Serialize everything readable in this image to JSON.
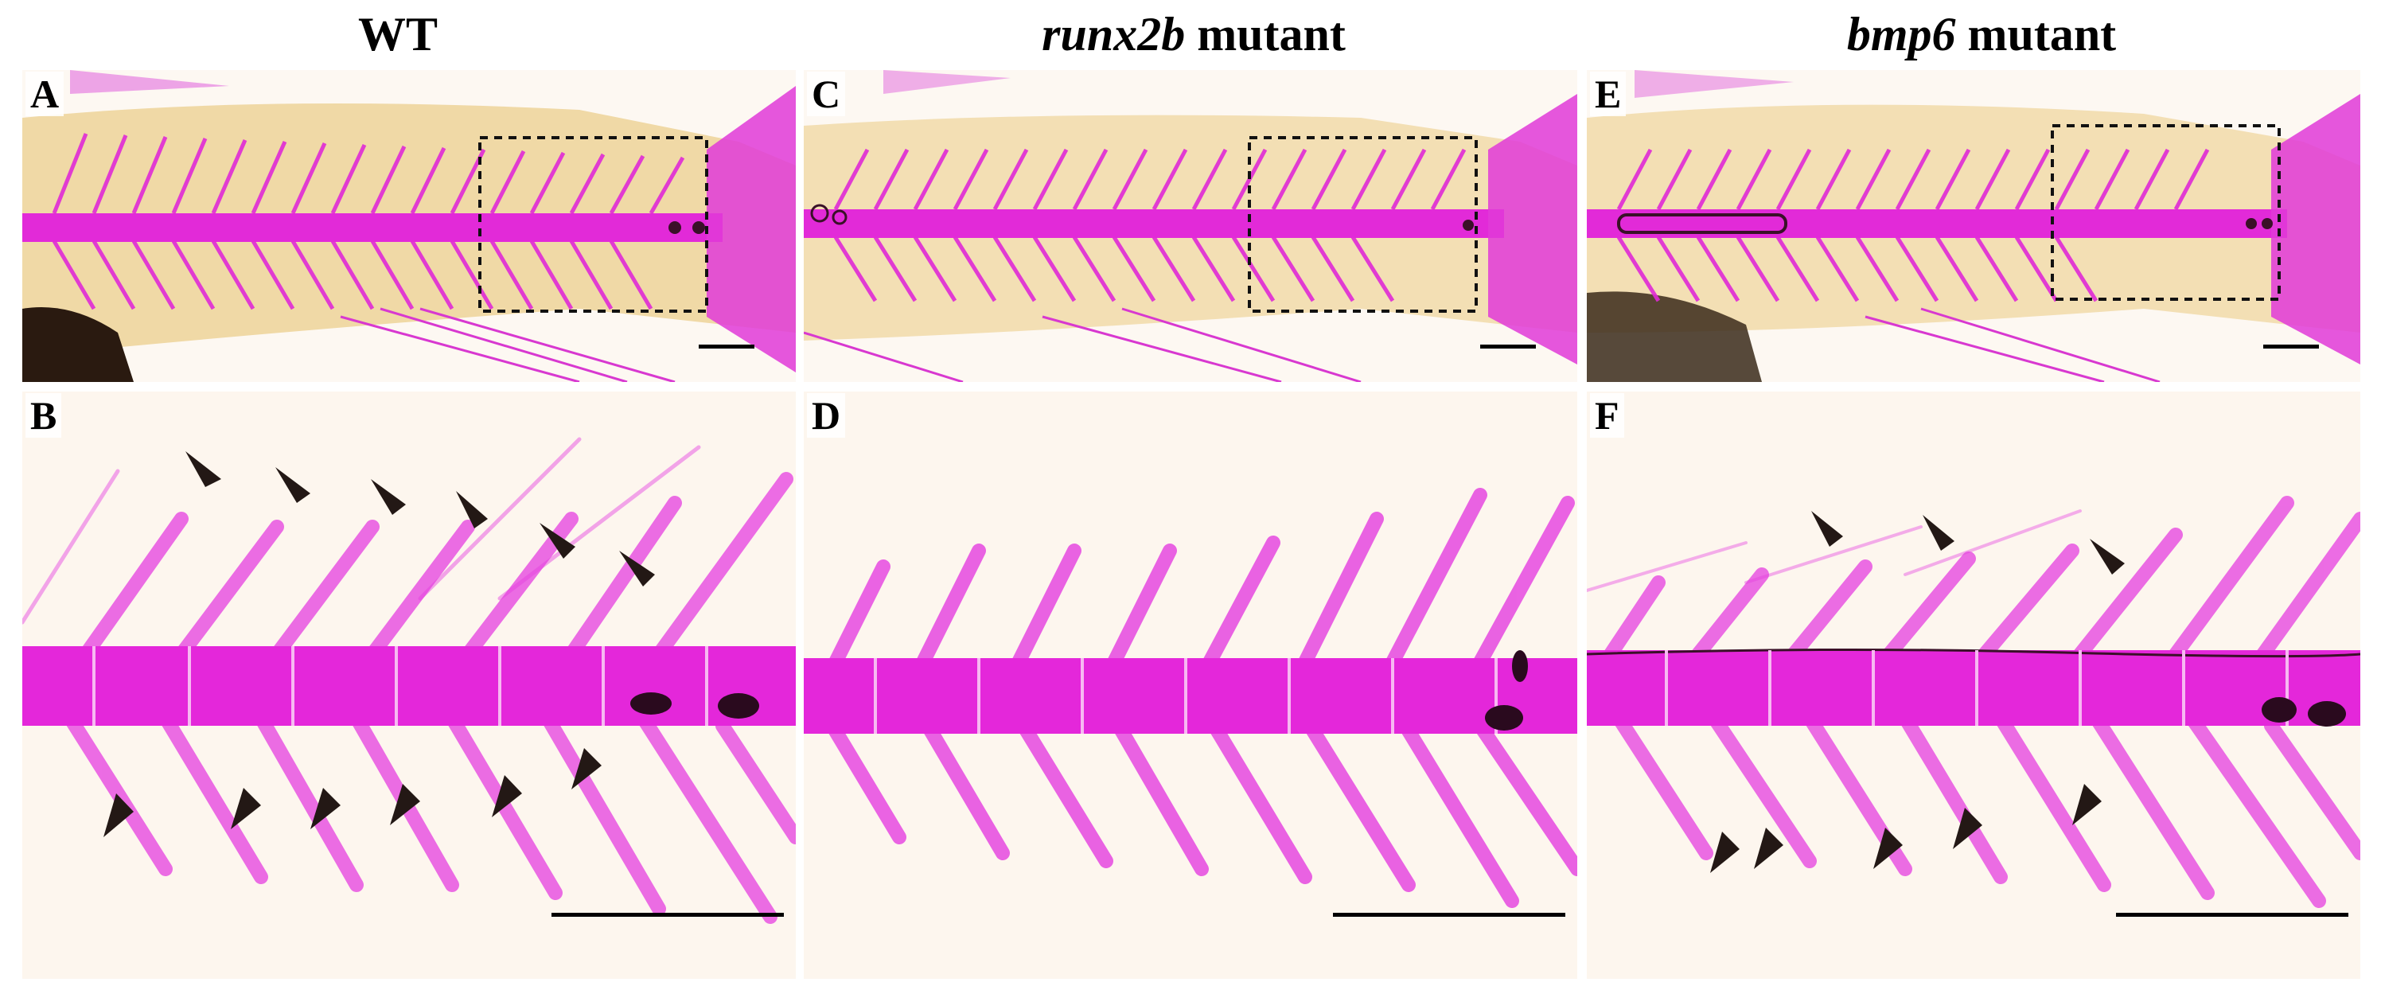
{
  "columns": [
    {
      "id": "wt",
      "title_italic": "",
      "title_rest": "WT"
    },
    {
      "id": "runx2b",
      "title_italic": "runx2b",
      "title_rest": " mutant"
    },
    {
      "id": "bmp6",
      "title_italic": "bmp6",
      "title_rest": " mutant"
    }
  ],
  "panels": {
    "A": {
      "label": "A"
    },
    "B": {
      "label": "B"
    },
    "C": {
      "label": "C"
    },
    "D": {
      "label": "D"
    },
    "E": {
      "label": "E"
    },
    "F": {
      "label": "F"
    }
  },
  "colors": {
    "bone": "#e020d8",
    "bone_dark": "#b010b0",
    "tissue": "#f2d9a8",
    "background": "#fdf8f4",
    "arrowhead": "#231815"
  }
}
